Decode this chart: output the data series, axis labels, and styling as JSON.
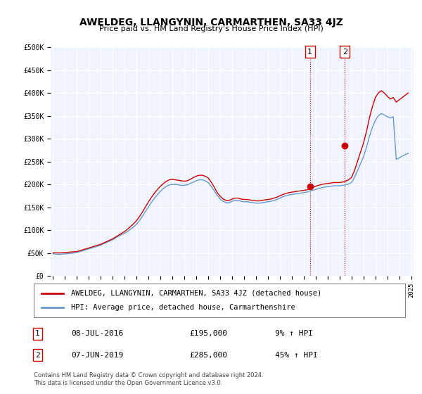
{
  "title": "AWELDEG, LLANGYNIN, CARMARTHEN, SA33 4JZ",
  "subtitle": "Price paid vs. HM Land Registry's House Price Index (HPI)",
  "background_color": "#ffffff",
  "plot_bg_color": "#f0f4ff",
  "grid_color": "#ffffff",
  "ylim": [
    0,
    500000
  ],
  "yticks": [
    0,
    50000,
    100000,
    150000,
    200000,
    250000,
    300000,
    350000,
    400000,
    450000,
    500000
  ],
  "ytick_labels": [
    "£0",
    "£50K",
    "£100K",
    "£150K",
    "£200K",
    "£250K",
    "£300K",
    "£350K",
    "£400K",
    "£450K",
    "£500K"
  ],
  "year_start": 1995,
  "year_end": 2025,
  "xtick_years": [
    1995,
    1996,
    1997,
    1998,
    1999,
    2000,
    2001,
    2002,
    2003,
    2004,
    2005,
    2006,
    2007,
    2008,
    2009,
    2010,
    2011,
    2012,
    2013,
    2014,
    2015,
    2016,
    2017,
    2018,
    2019,
    2020,
    2021,
    2022,
    2023,
    2024,
    2025
  ],
  "line1_color": "#cc0000",
  "line2_color": "#6699cc",
  "transaction1_x": 2016.52,
  "transaction1_y": 195000,
  "transaction2_x": 2019.44,
  "transaction2_y": 285000,
  "vline_color": "#cc0000",
  "vline_style": ":",
  "marker_color1": "#cc0000",
  "marker_color2": "#cc0000",
  "legend_line1": "AWELDEG, LLANGYNIN, CARMARTHEN, SA33 4JZ (detached house)",
  "legend_line2": "HPI: Average price, detached house, Carmarthenshire",
  "table_rows": [
    {
      "num": "1",
      "date": "08-JUL-2016",
      "price": "£195,000",
      "hpi": "9% ↑ HPI"
    },
    {
      "num": "2",
      "date": "07-JUN-2019",
      "price": "£285,000",
      "hpi": "45% ↑ HPI"
    }
  ],
  "footer": "Contains HM Land Registry data © Crown copyright and database right 2024.\nThis data is licensed under the Open Government Licence v3.0.",
  "hpi_data_x": [
    1995.0,
    1995.25,
    1995.5,
    1995.75,
    1996.0,
    1996.25,
    1996.5,
    1996.75,
    1997.0,
    1997.25,
    1997.5,
    1997.75,
    1998.0,
    1998.25,
    1998.5,
    1998.75,
    1999.0,
    1999.25,
    1999.5,
    1999.75,
    2000.0,
    2000.25,
    2000.5,
    2000.75,
    2001.0,
    2001.25,
    2001.5,
    2001.75,
    2002.0,
    2002.25,
    2002.5,
    2002.75,
    2003.0,
    2003.25,
    2003.5,
    2003.75,
    2004.0,
    2004.25,
    2004.5,
    2004.75,
    2005.0,
    2005.25,
    2005.5,
    2005.75,
    2006.0,
    2006.25,
    2006.5,
    2006.75,
    2007.0,
    2007.25,
    2007.5,
    2007.75,
    2008.0,
    2008.25,
    2008.5,
    2008.75,
    2009.0,
    2009.25,
    2009.5,
    2009.75,
    2010.0,
    2010.25,
    2010.5,
    2010.75,
    2011.0,
    2011.25,
    2011.5,
    2011.75,
    2012.0,
    2012.25,
    2012.5,
    2012.75,
    2013.0,
    2013.25,
    2013.5,
    2013.75,
    2014.0,
    2014.25,
    2014.5,
    2014.75,
    2015.0,
    2015.25,
    2015.5,
    2015.75,
    2016.0,
    2016.25,
    2016.5,
    2016.75,
    2017.0,
    2017.25,
    2017.5,
    2017.75,
    2018.0,
    2018.25,
    2018.5,
    2018.75,
    2019.0,
    2019.25,
    2019.5,
    2019.75,
    2020.0,
    2020.25,
    2020.5,
    2020.75,
    2021.0,
    2021.25,
    2021.5,
    2021.75,
    2022.0,
    2022.25,
    2022.5,
    2022.75,
    2023.0,
    2023.25,
    2023.5,
    2023.75,
    2024.0,
    2024.25,
    2024.5,
    2024.75
  ],
  "hpi_data_y": [
    48000,
    47500,
    47000,
    47500,
    48000,
    48500,
    49000,
    50000,
    51000,
    53000,
    55000,
    57000,
    59000,
    61000,
    63000,
    65000,
    67000,
    70000,
    73000,
    76000,
    79000,
    83000,
    87000,
    90000,
    93000,
    97000,
    102000,
    107000,
    113000,
    121000,
    131000,
    141000,
    151000,
    161000,
    170000,
    178000,
    185000,
    191000,
    196000,
    199000,
    200000,
    200000,
    199000,
    198000,
    198000,
    199000,
    202000,
    205000,
    208000,
    210000,
    210000,
    208000,
    204000,
    196000,
    186000,
    176000,
    168000,
    163000,
    160000,
    160000,
    163000,
    165000,
    165000,
    163000,
    162000,
    162000,
    161000,
    160000,
    159000,
    159000,
    160000,
    161000,
    162000,
    163000,
    165000,
    167000,
    170000,
    173000,
    175000,
    177000,
    178000,
    179000,
    180000,
    181000,
    182000,
    183000,
    185000,
    187000,
    189000,
    191000,
    193000,
    194000,
    195000,
    196000,
    197000,
    197000,
    197000,
    198000,
    199000,
    201000,
    204000,
    215000,
    230000,
    245000,
    260000,
    280000,
    305000,
    325000,
    340000,
    350000,
    355000,
    352000,
    348000,
    345000,
    348000,
    255000,
    258000,
    262000,
    265000,
    268000
  ],
  "price_data_x": [
    1995.0,
    1995.25,
    1995.5,
    1995.75,
    1996.0,
    1996.25,
    1996.5,
    1996.75,
    1997.0,
    1997.25,
    1997.5,
    1997.75,
    1998.0,
    1998.25,
    1998.5,
    1998.75,
    1999.0,
    1999.25,
    1999.5,
    1999.75,
    2000.0,
    2000.25,
    2000.5,
    2000.75,
    2001.0,
    2001.25,
    2001.5,
    2001.75,
    2002.0,
    2002.25,
    2002.5,
    2002.75,
    2003.0,
    2003.25,
    2003.5,
    2003.75,
    2004.0,
    2004.25,
    2004.5,
    2004.75,
    2005.0,
    2005.25,
    2005.5,
    2005.75,
    2006.0,
    2006.25,
    2006.5,
    2006.75,
    2007.0,
    2007.25,
    2007.5,
    2007.75,
    2008.0,
    2008.25,
    2008.5,
    2008.75,
    2009.0,
    2009.25,
    2009.5,
    2009.75,
    2010.0,
    2010.25,
    2010.5,
    2010.75,
    2011.0,
    2011.25,
    2011.5,
    2011.75,
    2012.0,
    2012.25,
    2012.5,
    2012.75,
    2013.0,
    2013.25,
    2013.5,
    2013.75,
    2014.0,
    2014.25,
    2014.5,
    2014.75,
    2015.0,
    2015.25,
    2015.5,
    2015.75,
    2016.0,
    2016.25,
    2016.5,
    2016.75,
    2017.0,
    2017.25,
    2017.5,
    2017.75,
    2018.0,
    2018.25,
    2018.5,
    2018.75,
    2019.0,
    2019.25,
    2019.5,
    2019.75,
    2020.0,
    2020.25,
    2020.5,
    2020.75,
    2021.0,
    2021.25,
    2021.5,
    2021.75,
    2022.0,
    2022.25,
    2022.5,
    2022.75,
    2023.0,
    2023.25,
    2023.5,
    2023.75,
    2024.0,
    2024.25,
    2024.5,
    2024.75
  ],
  "price_data_y": [
    50000,
    50500,
    50000,
    50500,
    51000,
    51500,
    52000,
    52500,
    53000,
    55000,
    57000,
    59000,
    61000,
    63000,
    65000,
    67000,
    69000,
    72000,
    75000,
    78000,
    81000,
    85000,
    89000,
    93000,
    97000,
    102000,
    108000,
    114000,
    121000,
    130000,
    140000,
    151000,
    162000,
    172000,
    181000,
    189000,
    196000,
    202000,
    207000,
    210000,
    211000,
    210000,
    209000,
    208000,
    207000,
    208000,
    211000,
    215000,
    218000,
    220000,
    220000,
    218000,
    214000,
    205000,
    194000,
    182000,
    174000,
    168000,
    165000,
    165000,
    168000,
    170000,
    170000,
    168000,
    167000,
    167000,
    166000,
    165000,
    164000,
    164000,
    165000,
    166000,
    167000,
    168000,
    170000,
    172000,
    175000,
    178000,
    180000,
    182000,
    183000,
    184000,
    185000,
    186000,
    187000,
    188000,
    190000,
    193000,
    196000,
    198000,
    200000,
    201000,
    202000,
    203000,
    204000,
    204000,
    204000,
    205000,
    207000,
    210000,
    215000,
    230000,
    250000,
    270000,
    290000,
    315000,
    345000,
    370000,
    390000,
    400000,
    405000,
    400000,
    393000,
    387000,
    390000,
    380000,
    385000,
    390000,
    395000,
    400000
  ]
}
